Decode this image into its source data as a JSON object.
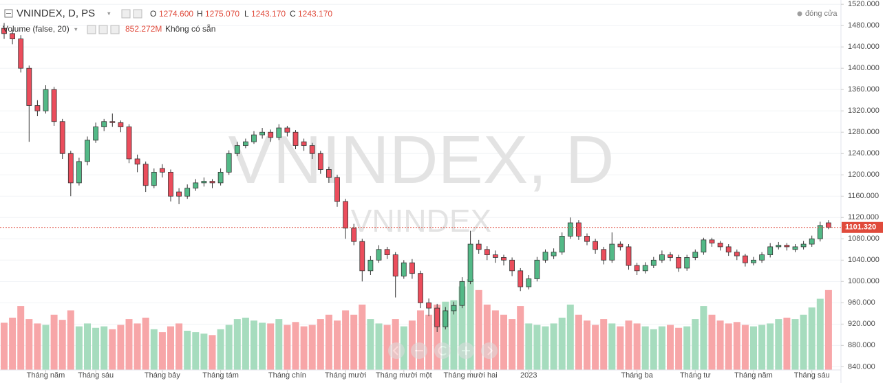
{
  "chart_data": {
    "type": "candlestick",
    "title": "VNINDEX, D, PS",
    "watermark": "VNINDEX, D",
    "watermark_subtitle": "VNINDEX",
    "legend": {
      "open_label": "O",
      "open": "1274.600",
      "high_label": "H",
      "high": "1275.070",
      "low_label": "L",
      "low": "1243.170",
      "close_label": "C",
      "close": "1243.170"
    },
    "volume_legend": {
      "name": "Volume (false, 20)",
      "value": "852.272M",
      "status": "Không có sẵn"
    },
    "status_label": "đóng cửa",
    "categories": [
      null,
      null,
      null,
      null,
      null,
      "Tháng năm",
      null,
      null,
      null,
      null,
      null,
      "Tháng sáu",
      null,
      null,
      null,
      null,
      null,
      null,
      null,
      "Tháng bảy",
      null,
      null,
      null,
      null,
      null,
      null,
      "Tháng tám",
      null,
      null,
      null,
      null,
      null,
      null,
      null,
      "Tháng chín",
      null,
      null,
      null,
      null,
      null,
      null,
      "Tháng mười",
      null,
      null,
      null,
      null,
      null,
      null,
      "Tháng mười một",
      null,
      null,
      null,
      null,
      null,
      null,
      null,
      "Tháng mười hai",
      null,
      null,
      null,
      null,
      null,
      null,
      "2023",
      null,
      null,
      null,
      null,
      null,
      null,
      null,
      null,
      null,
      null,
      null,
      null,
      "Tháng ba",
      null,
      null,
      null,
      null,
      null,
      null,
      "Tháng tư",
      null,
      null,
      null,
      null,
      null,
      null,
      "Tháng năm",
      null,
      null,
      null,
      null,
      null,
      null,
      "Tháng sáu",
      null,
      null
    ],
    "series": [
      {
        "name": "VNINDEX",
        "up_color": "#53b987",
        "down_color": "#eb4d5c",
        "open": [
          1475,
          1465,
          1455,
          1400,
          1330,
          1320,
          1360,
          1300,
          1240,
          1185,
          1225,
          1265,
          1290,
          1300,
          1298,
          1290,
          1230,
          1220,
          1180,
          1212,
          1205,
          1168,
          1160,
          1175,
          1185,
          1188,
          1185,
          1205,
          1240,
          1255,
          1262,
          1275,
          1280,
          1270,
          1288,
          1280,
          1262,
          1255,
          1240,
          1210,
          1195,
          1150,
          1100,
          1075,
          1020,
          1040,
          1060,
          1050,
          1010,
          1035,
          1015,
          960,
          950,
          915,
          945,
          955,
          1000,
          1070,
          1060,
          1050,
          1045,
          1040,
          1020,
          990,
          1005,
          1040,
          1048,
          1055,
          1085,
          1110,
          1085,
          1075,
          1060,
          1040,
          1070,
          1065,
          1030,
          1020,
          1030,
          1040,
          1050,
          1045,
          1025,
          1045,
          1055,
          1078,
          1072,
          1065,
          1055,
          1048,
          1035,
          1040,
          1050,
          1065,
          1068,
          1060,
          1065,
          1070,
          1080,
          1110
        ],
        "high": [
          1485,
          1472,
          1462,
          1405,
          1340,
          1368,
          1365,
          1305,
          1245,
          1232,
          1272,
          1298,
          1305,
          1315,
          1302,
          1295,
          1238,
          1225,
          1212,
          1220,
          1210,
          1175,
          1182,
          1192,
          1195,
          1192,
          1212,
          1246,
          1262,
          1268,
          1282,
          1288,
          1285,
          1295,
          1292,
          1284,
          1268,
          1260,
          1245,
          1215,
          1200,
          1155,
          1108,
          1080,
          1048,
          1068,
          1065,
          1055,
          1040,
          1042,
          1020,
          968,
          958,
          952,
          962,
          1008,
          1095,
          1078,
          1066,
          1058,
          1050,
          1045,
          1025,
          1012,
          1046,
          1060,
          1062,
          1092,
          1120,
          1115,
          1090,
          1080,
          1065,
          1092,
          1075,
          1070,
          1035,
          1036,
          1046,
          1058,
          1055,
          1050,
          1050,
          1060,
          1082,
          1082,
          1076,
          1070,
          1060,
          1052,
          1046,
          1055,
          1072,
          1074,
          1072,
          1070,
          1076,
          1086,
          1112,
          1115
        ],
        "low": [
          1455,
          1445,
          1392,
          1262,
          1310,
          1315,
          1292,
          1230,
          1160,
          1180,
          1218,
          1260,
          1282,
          1290,
          1280,
          1222,
          1205,
          1168,
          1175,
          1195,
          1150,
          1145,
          1155,
          1170,
          1178,
          1175,
          1180,
          1200,
          1235,
          1250,
          1258,
          1268,
          1262,
          1265,
          1272,
          1248,
          1245,
          1230,
          1202,
          1185,
          1140,
          1080,
          1068,
          1000,
          1012,
          1035,
          1042,
          970,
          1005,
          1005,
          950,
          935,
          905,
          910,
          938,
          950,
          995,
          1052,
          1040,
          1035,
          1030,
          1010,
          982,
          985,
          1000,
          1035,
          1042,
          1050,
          1080,
          1078,
          1068,
          1052,
          1032,
          1035,
          1058,
          1022,
          1012,
          1015,
          1025,
          1035,
          1038,
          1018,
          1020,
          1040,
          1050,
          1065,
          1058,
          1048,
          1040,
          1028,
          1030,
          1035,
          1045,
          1060,
          1058,
          1055,
          1060,
          1065,
          1075,
          1098
        ],
        "close": [
          1465,
          1455,
          1400,
          1330,
          1320,
          1360,
          1300,
          1240,
          1185,
          1225,
          1265,
          1290,
          1300,
          1298,
          1290,
          1230,
          1220,
          1180,
          1205,
          1205,
          1160,
          1160,
          1175,
          1185,
          1188,
          1185,
          1205,
          1240,
          1255,
          1262,
          1275,
          1280,
          1270,
          1288,
          1280,
          1255,
          1255,
          1240,
          1210,
          1195,
          1150,
          1100,
          1075,
          1020,
          1040,
          1060,
          1050,
          1010,
          1035,
          1015,
          960,
          950,
          915,
          945,
          955,
          1000,
          1070,
          1060,
          1050,
          1045,
          1040,
          1020,
          990,
          1005,
          1040,
          1055,
          1055,
          1085,
          1110,
          1085,
          1075,
          1060,
          1040,
          1070,
          1065,
          1030,
          1020,
          1030,
          1040,
          1050,
          1045,
          1025,
          1045,
          1055,
          1078,
          1072,
          1065,
          1055,
          1048,
          1035,
          1040,
          1050,
          1065,
          1068,
          1065,
          1065,
          1070,
          1080,
          1105,
          1101.32
        ]
      }
    ],
    "volume": {
      "up_color": "#a6dcbe",
      "down_color": "#f7a6a8",
      "values": [
        650,
        720,
        880,
        700,
        640,
        620,
        760,
        690,
        820,
        600,
        640,
        580,
        600,
        560,
        620,
        700,
        640,
        720,
        560,
        520,
        600,
        640,
        540,
        520,
        500,
        480,
        560,
        620,
        700,
        720,
        680,
        650,
        640,
        700,
        620,
        660,
        600,
        620,
        700,
        760,
        680,
        820,
        760,
        900,
        700,
        640,
        620,
        700,
        600,
        680,
        820,
        760,
        900,
        940,
        960,
        1150,
        1250,
        1100,
        900,
        820,
        760,
        700,
        880,
        640,
        620,
        600,
        640,
        720,
        900,
        760,
        680,
        620,
        700,
        640,
        600,
        680,
        640,
        600,
        560,
        600,
        620,
        580,
        600,
        700,
        880,
        760,
        680,
        640,
        660,
        620,
        600,
        620,
        640,
        700,
        720,
        700,
        760,
        860,
        980,
        1100
      ]
    },
    "last_price": {
      "value": 1101.32,
      "label": "1101.320",
      "color": "#e04a3b"
    },
    "ylim": [
      834,
      1528
    ],
    "yticks": [
      {
        "value": 840,
        "label": "840.000"
      },
      {
        "value": 880,
        "label": "880.000"
      },
      {
        "value": 920,
        "label": "920.000"
      },
      {
        "value": 960,
        "label": "960.000"
      },
      {
        "value": 1000,
        "label": "1000.000"
      },
      {
        "value": 1040,
        "label": "1040.000"
      },
      {
        "value": 1080,
        "label": "1080.000"
      },
      {
        "value": 1120,
        "label": "1120.000"
      },
      {
        "value": 1160,
        "label": "1160.000"
      },
      {
        "value": 1200,
        "label": "1200.000"
      },
      {
        "value": 1240,
        "label": "1240.000"
      },
      {
        "value": 1280,
        "label": "1280.000"
      },
      {
        "value": 1320,
        "label": "1320.000"
      },
      {
        "value": 1360,
        "label": "1360.000"
      },
      {
        "value": 1400,
        "label": "1400.000"
      },
      {
        "value": 1440,
        "label": "1440.000"
      },
      {
        "value": 1480,
        "label": "1480.000"
      },
      {
        "value": 1520,
        "label": "1520.000"
      }
    ],
    "grid": true
  }
}
